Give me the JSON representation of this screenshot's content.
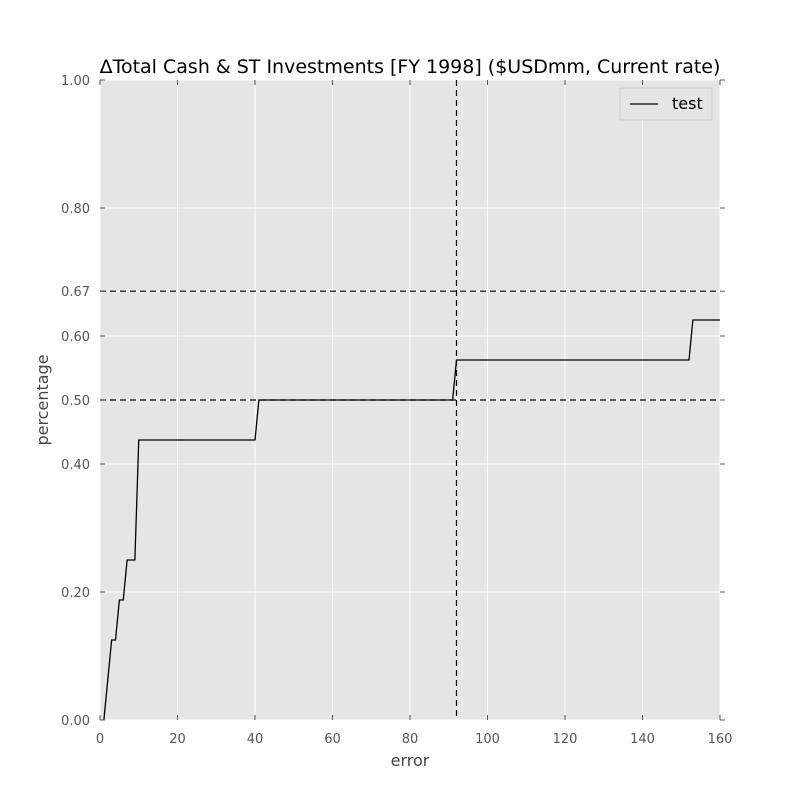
{
  "chart_data": {
    "type": "line",
    "title": "ΔTotal Cash & ST Investments [FY 1998] ($USDmm, Current rate)",
    "xlabel": "error",
    "ylabel": "percentage",
    "xlim": [
      0,
      160
    ],
    "ylim": [
      0,
      1
    ],
    "xticks": [
      0,
      20,
      40,
      60,
      80,
      100,
      120,
      140,
      160
    ],
    "xtick_labels": [
      "0",
      "20",
      "40",
      "60",
      "80",
      "100",
      "120",
      "140",
      "160"
    ],
    "yticks": [
      0,
      0.2,
      0.4,
      0.5,
      0.6,
      0.67,
      0.8,
      1.0
    ],
    "ytick_labels": [
      "0.00",
      "0.20",
      "0.40",
      "0.50",
      "0.60",
      "0.67",
      "0.80",
      "1.00"
    ],
    "grid": true,
    "legend_position": "top-right",
    "background_color": "#e5e5e5",
    "series": [
      {
        "name": "test",
        "color": "#000000",
        "x": [
          1,
          3,
          4,
          5,
          6,
          7,
          9,
          10,
          40,
          41,
          91,
          92,
          152,
          153,
          160
        ],
        "y": [
          0,
          0.125,
          0.125,
          0.1875,
          0.1875,
          0.25,
          0.25,
          0.4375,
          0.4375,
          0.5,
          0.5,
          0.5625,
          0.5625,
          0.625,
          0.625
        ]
      }
    ],
    "reference_lines": [
      {
        "orientation": "horizontal",
        "value": 0.67,
        "style": "dashed"
      },
      {
        "orientation": "horizontal",
        "value": 0.5,
        "style": "dashed"
      },
      {
        "orientation": "vertical",
        "value": 92,
        "style": "dashed"
      }
    ]
  }
}
